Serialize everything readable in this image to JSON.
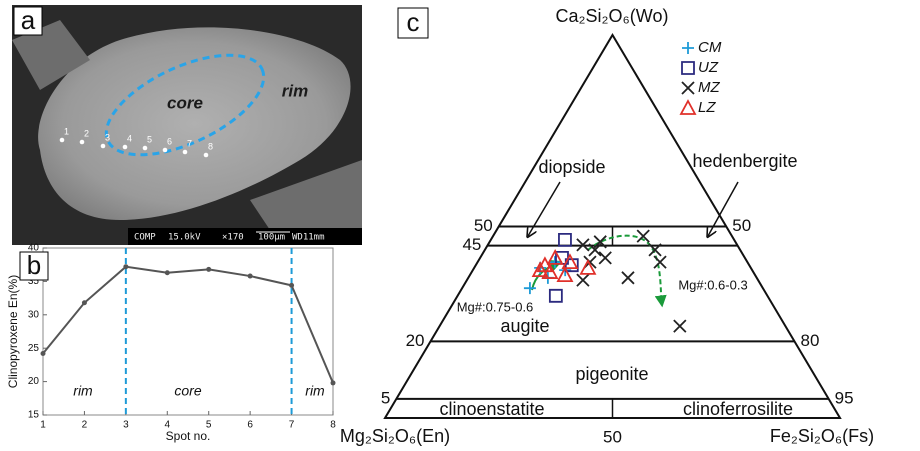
{
  "image_panel": {
    "label": "a",
    "core": "core",
    "rim": "rim",
    "spots": [
      "1",
      "2",
      "3",
      "4",
      "5",
      "6",
      "7",
      "8"
    ],
    "info": [
      "COMP",
      "15.0kV",
      "×170",
      "100μm",
      "WD11mm"
    ]
  },
  "chart_data": [
    {
      "type": "line",
      "label": "b",
      "x": [
        1,
        2,
        3,
        4,
        5,
        6,
        7,
        8
      ],
      "values": [
        24.2,
        31.8,
        37.2,
        36.3,
        36.8,
        35.8,
        34.4,
        19.8
      ],
      "color": "#555555",
      "xlim": [
        1,
        8
      ],
      "ylim": [
        15,
        40
      ],
      "xticks": [
        1,
        2,
        3,
        4,
        5,
        6,
        7,
        8
      ],
      "yticks": [
        15,
        20,
        25,
        30,
        35,
        40
      ],
      "xlabel": "Spot no.",
      "ylabel": "Clinopyroxene En(%)",
      "vlines": [
        3,
        7
      ],
      "vline_color": "#1e9bd7",
      "annotations": [
        "rim",
        "core",
        "rim"
      ]
    },
    {
      "type": "ternary",
      "label": "c",
      "vertices": {
        "top": "Ca₂Si₂O₆(Wo)",
        "left": "Mg₂Si₂O₆(En)",
        "right": "Fe₂Si₂O₆(Fs)"
      },
      "left_ticks": [
        5,
        20,
        45,
        50
      ],
      "right_ticks": [
        95,
        80,
        50
      ],
      "bottom_ticks": [
        50
      ],
      "fields": [
        "diopside",
        "hedenbergite",
        "augite",
        "pigeonite",
        "clinoenstatite",
        "clinoferrosilite"
      ],
      "annotations": [
        "Mg#:0.75-0.6",
        "Mg#:0.6-0.3"
      ],
      "series": [
        {
          "name": "CM",
          "color": "#1e9bd7",
          "marker": "plus",
          "wo": [
            39.2,
            40.7,
            38.6,
            36.6,
            33.9
          ],
          "fs": [
            14.5,
            17.0,
            20.3,
            17.5,
            14.9
          ]
        },
        {
          "name": "UZ",
          "color": "#2b2a7f",
          "marker": "square",
          "wo": [
            46.5,
            41.8,
            39.9,
            31.9
          ],
          "fs": [
            16.3,
            18.0,
            21.1,
            21.6
          ]
        },
        {
          "name": "MZ",
          "color": "#222222",
          "marker": "cross",
          "wo": [
            45.2,
            43.9,
            46.0,
            40.7,
            36.0,
            36.6,
            47.5,
            43.9,
            40.7,
            24.0,
            41.8
          ],
          "fs": [
            20.9,
            24.2,
            24.3,
            24.7,
            25.5,
            35.1,
            33.0,
            37.4,
            40.1,
            52.8,
            27.5
          ]
        },
        {
          "name": "LZ",
          "color": "#e0302a",
          "marker": "triangle",
          "wo": [
            39.9,
            41.8,
            40.7,
            38.1,
            39.2,
            37.3,
            38.6
          ],
          "fs": [
            15.2,
            16.5,
            20.3,
            17.2,
            25.0,
            20.9,
            14.8
          ]
        }
      ]
    }
  ]
}
